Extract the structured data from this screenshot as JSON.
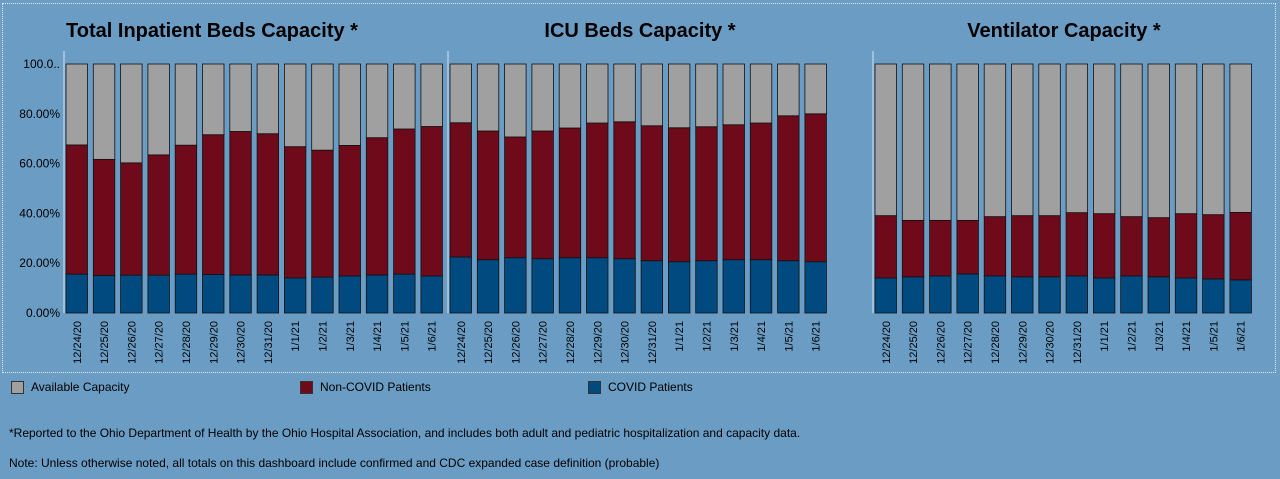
{
  "legend": {
    "available": "Available Capacity",
    "non_covid": "Non-COVID Patients",
    "covid": "COVID Patients"
  },
  "colors": {
    "available": "#a0a0a0",
    "non_covid": "#6e0a1a",
    "covid": "#004a80",
    "background": "#6a9cc4"
  },
  "footnotes": {
    "reported": "*Reported to the Ohio Department of Health by the Ohio Hospital Association, and includes both adult and pediatric hospitalization and capacity data.",
    "note": "Note: Unless otherwise noted, all totals on this dashboard include confirmed and CDC expanded case definition (probable)"
  },
  "chart_data": [
    {
      "type": "bar",
      "stacked": true,
      "title": "Total Inpatient Beds Capacity *",
      "categories": [
        "12/24/20",
        "12/25/20",
        "12/26/20",
        "12/27/20",
        "12/28/20",
        "12/29/20",
        "12/30/20",
        "12/31/20",
        "1/1/21",
        "1/2/21",
        "1/3/21",
        "1/4/21",
        "1/5/21",
        "1/6/21"
      ],
      "y_ticks": [
        "100.0..",
        "80.00%",
        "60.00%",
        "40.00%",
        "20.00%",
        "0.00%"
      ],
      "ylim": [
        0,
        100
      ],
      "series": [
        {
          "name": "COVID Patients",
          "key": "covid",
          "values": [
            15.6,
            15.1,
            15.2,
            15.2,
            15.6,
            15.5,
            15.3,
            15.3,
            14.1,
            14.4,
            14.9,
            15.3,
            15.6,
            14.9
          ]
        },
        {
          "name": "Non-COVID Patients",
          "key": "non_covid",
          "values": [
            51.9,
            46.6,
            45.1,
            48.3,
            51.8,
            56.1,
            57.6,
            56.7,
            52.7,
            51.0,
            52.4,
            55.1,
            58.3,
            60.0
          ]
        },
        {
          "name": "Available Capacity",
          "key": "available",
          "values": [
            32.5,
            38.3,
            39.7,
            36.5,
            32.6,
            28.4,
            27.1,
            28.0,
            33.2,
            34.6,
            32.7,
            29.6,
            26.1,
            25.1
          ]
        }
      ]
    },
    {
      "type": "bar",
      "stacked": true,
      "title": "ICU Beds Capacity *",
      "categories": [
        "12/24/20",
        "12/25/20",
        "12/26/20",
        "12/27/20",
        "12/28/20",
        "12/29/20",
        "12/30/20",
        "12/31/20",
        "1/1/21",
        "1/2/21",
        "1/3/21",
        "1/4/21",
        "1/5/21",
        "1/6/21"
      ],
      "ylim": [
        0,
        100
      ],
      "series": [
        {
          "name": "COVID Patients",
          "key": "covid",
          "values": [
            22.5,
            21.4,
            22.2,
            21.8,
            22.2,
            22.2,
            21.8,
            21.0,
            20.6,
            21.0,
            21.4,
            21.4,
            21.0,
            20.6
          ]
        },
        {
          "name": "Non-COVID Patients",
          "key": "non_covid",
          "values": [
            53.9,
            51.7,
            48.5,
            51.3,
            52.1,
            54.1,
            55.0,
            54.2,
            53.8,
            53.8,
            54.2,
            54.9,
            58.2,
            59.4
          ]
        },
        {
          "name": "Available Capacity",
          "key": "available",
          "values": [
            23.6,
            26.9,
            29.3,
            26.9,
            25.7,
            23.7,
            23.2,
            24.8,
            25.6,
            25.2,
            24.4,
            23.7,
            20.8,
            20.0
          ]
        }
      ]
    },
    {
      "type": "bar",
      "stacked": true,
      "title": "Ventilator Capacity *",
      "categories": [
        "12/24/20",
        "12/25/20",
        "12/26/20",
        "12/27/20",
        "12/28/20",
        "12/29/20",
        "12/30/20",
        "12/31/20",
        "1/1/21",
        "1/2/21",
        "1/3/21",
        "1/4/21",
        "1/5/21",
        "1/6/21"
      ],
      "ylim": [
        0,
        100
      ],
      "series": [
        {
          "name": "COVID Patients",
          "key": "covid",
          "values": [
            14.1,
            14.5,
            14.9,
            15.7,
            14.9,
            14.5,
            14.5,
            14.9,
            14.1,
            14.9,
            14.5,
            14.1,
            13.7,
            13.3
          ]
        },
        {
          "name": "Non-COVID Patients",
          "key": "non_covid",
          "values": [
            25.0,
            22.7,
            22.3,
            21.5,
            23.8,
            24.6,
            24.6,
            25.4,
            25.8,
            23.8,
            23.8,
            25.8,
            25.8,
            27.1
          ]
        },
        {
          "name": "Available Capacity",
          "key": "available",
          "values": [
            60.9,
            62.8,
            62.8,
            62.8,
            61.3,
            60.9,
            60.9,
            59.7,
            60.1,
            61.3,
            61.7,
            60.1,
            60.5,
            59.6
          ]
        }
      ]
    }
  ]
}
